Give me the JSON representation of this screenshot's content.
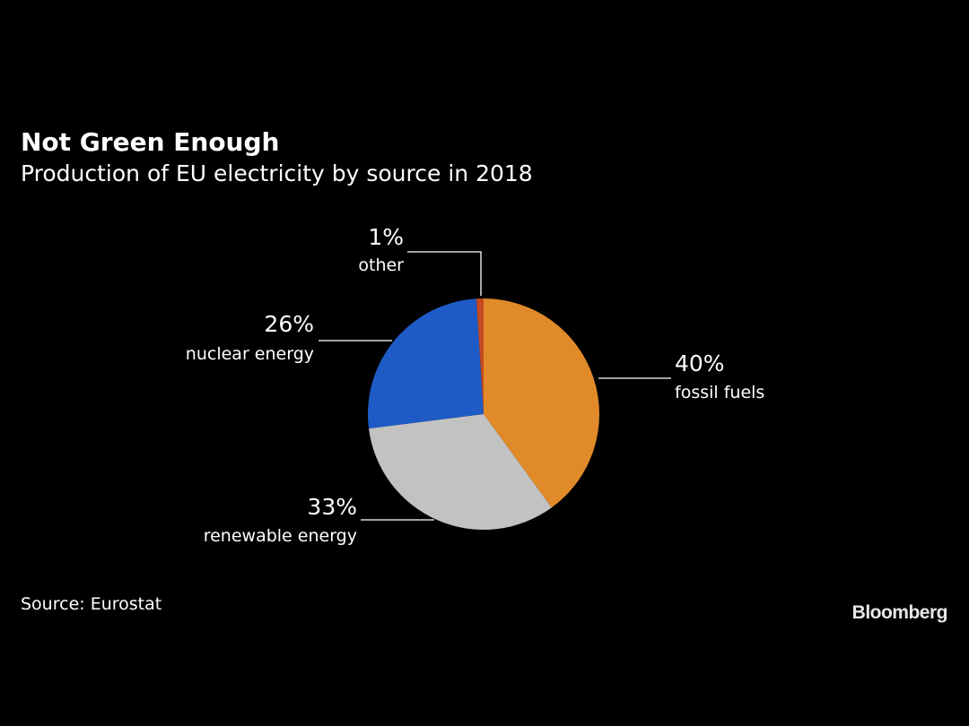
{
  "chart_data": {
    "type": "pie",
    "title": "Not Green Enough",
    "subtitle": "Production of EU electricity by source in 2018",
    "categories": [
      "fossil fuels",
      "renewable energy",
      "nuclear energy",
      "other"
    ],
    "values": [
      40,
      33,
      26,
      1
    ],
    "value_labels": [
      "40%",
      "33%",
      "26%",
      "1%"
    ],
    "colors": [
      "#e08a2a",
      "#c2c2c2",
      "#1f5bc6",
      "#c44a22"
    ],
    "source": "Source: Eurostat"
  },
  "brand": "Bloomberg"
}
